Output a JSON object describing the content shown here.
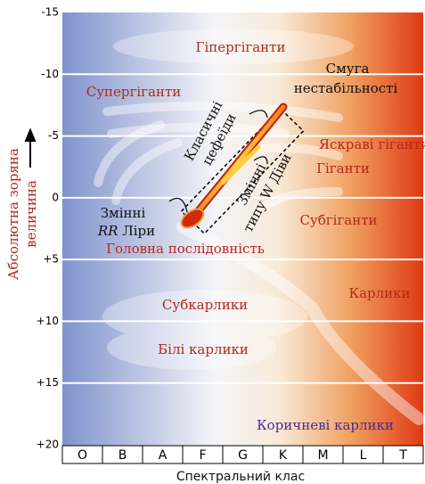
{
  "diagram": {
    "y_axis": {
      "title_line1": "Абсолютна зоряна",
      "title_line2": "величина",
      "ticks": [
        "-15",
        "-10",
        "-5",
        "0",
        "+5",
        "+10",
        "+15",
        "+20"
      ]
    },
    "x_axis": {
      "title": "Спектральний клас",
      "classes": [
        "O",
        "B",
        "A",
        "F",
        "G",
        "K",
        "M",
        "L",
        "T"
      ]
    },
    "regions": {
      "hypergiants": "Гіпергіганти",
      "supergiants": "Супергіганти",
      "bright_giants": "Яскраві гіганти",
      "giants": "Гіганти",
      "subgiants": "Субгіганти",
      "main_sequence": "Головна послідовність",
      "dwarfs": "Карлики",
      "subdwarfs": "Субкарлики",
      "white_dwarfs": "Білі карлики",
      "brown_dwarfs": "Коричневі карлики"
    },
    "instability_strip": {
      "line1": "Смуга",
      "line2": "нестабільності"
    },
    "cepheids": {
      "line1": "Класичні",
      "line2": "цефеїди"
    },
    "w_virginis": {
      "line1": "Змінні",
      "line2": "типу W Діви"
    },
    "rr_lyrae": {
      "line1": "Змінні",
      "italic": "RR",
      "rest": "Ліри"
    }
  }
}
